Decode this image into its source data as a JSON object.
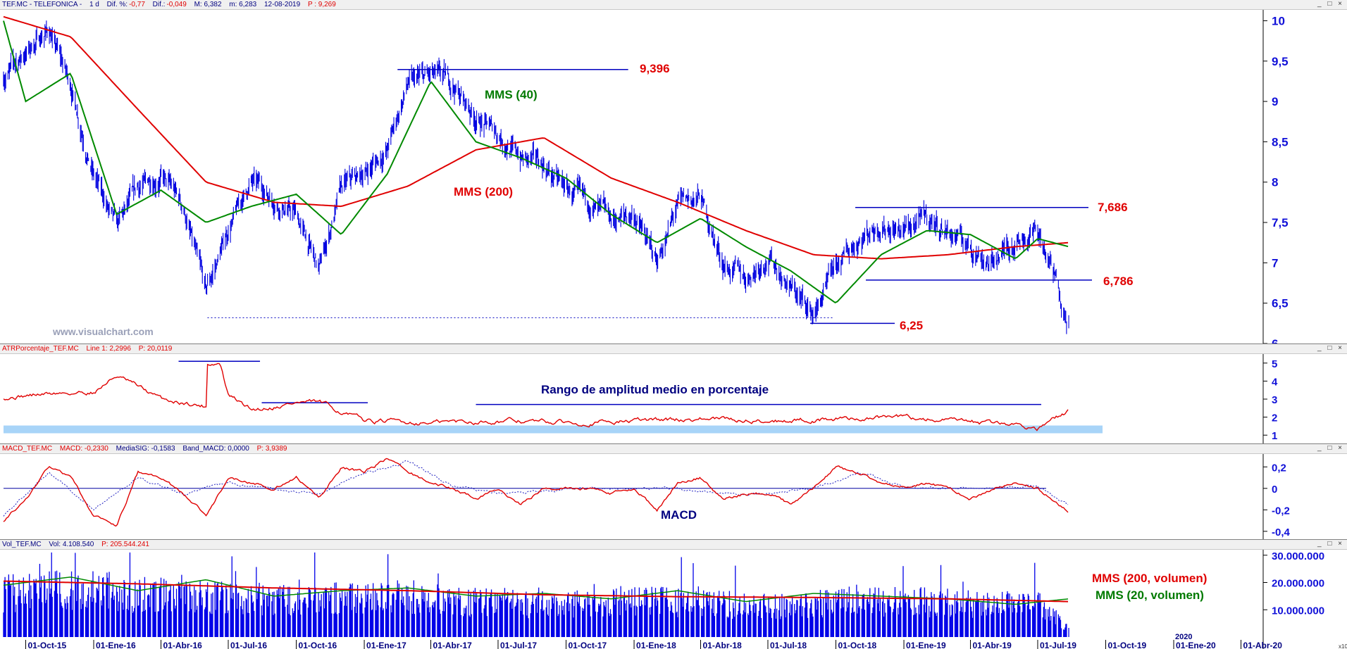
{
  "panels": {
    "price": {
      "header": {
        "symbol": "TEF.MC - TELEFONICA -",
        "period": "1 d",
        "dif_pct_label": "Dif. %:",
        "dif_pct": "-0,77",
        "dif_label": "Dif.:",
        "dif": "-0,049",
        "max": "M: 6,382",
        "min": "m: 6,283",
        "date": "12-08-2019",
        "last": "P : 9,269"
      },
      "watermark": "www.visualchart.com",
      "annotations": {
        "high_level": "9,396",
        "range_top": "7,686",
        "range_bottom": "6,786",
        "low_level": "6,25",
        "mms40": "MMS (40)",
        "mms200": "MMS (200)"
      }
    },
    "atr": {
      "header": {
        "name": "ATRPorcentaje_TEF.MC",
        "line": "Line 1: 2,2996",
        "p": "P: 20,0119"
      },
      "title": "Rango de amplitud medio en porcentaje"
    },
    "macd": {
      "header": {
        "name": "MACD_TEF.MC",
        "macd": "MACD: -0,2330",
        "signal": "MediaSIG: -0,1583",
        "band": "Band_MACD: 0,0000",
        "p": "P: 3,9389"
      },
      "title": "MACD"
    },
    "volume": {
      "header": {
        "name": "Vol_TEF.MC",
        "vol": "Vol: 4.108.540",
        "p": "P: 205.544.241"
      },
      "mms200_label": "MMS (200, volumen)",
      "mms20_label": "MMS (20, volumen)",
      "year_marker": "2020",
      "corner_label": "x10"
    }
  },
  "window_controls": "_ □ ×",
  "colors": {
    "price": "#0000e0",
    "mms200": "#e00000",
    "mms40": "#008a00",
    "axis_text": "#1010d8",
    "atr_band": "#a8d4f8"
  },
  "chart_data": [
    {
      "type": "line",
      "title": "TEF.MC - TELEFONICA",
      "x_ticks": [
        "01-Oct-15",
        "01-Ene-16",
        "01-Abr-16",
        "01-Jul-16",
        "01-Oct-16",
        "01-Ene-17",
        "01-Abr-17",
        "01-Jul-17",
        "01-Oct-17",
        "01-Ene-18",
        "01-Abr-18",
        "01-Jul-18",
        "01-Oct-18",
        "01-Ene-19",
        "01-Abr-19",
        "01-Jul-19",
        "01-Oct-19",
        "01-Ene-20",
        "01-Abr-20"
      ],
      "y_ticks": [
        "10",
        "9,5",
        "9",
        "8,5",
        "8",
        "7,5",
        "7",
        "6,5",
        "6"
      ],
      "ylim": [
        6,
        10.1
      ],
      "series": [
        {
          "name": "Price",
          "x": [
            "01-Sep-15",
            "01-Oct-15",
            "01-Nov-15",
            "01-Dic-15",
            "01-Ene-16",
            "01-Feb-16",
            "01-Mar-16",
            "01-Abr-16",
            "01-May-16",
            "01-Jun-16",
            "01-Jul-16",
            "01-Ago-16",
            "01-Sep-16",
            "01-Oct-16",
            "01-Nov-16",
            "01-Dic-16",
            "01-Ene-17",
            "01-Feb-17",
            "01-Mar-17",
            "01-Abr-17",
            "01-May-17",
            "01-Jun-17",
            "01-Jul-17",
            "01-Ago-17",
            "01-Sep-17",
            "01-Oct-17",
            "01-Nov-17",
            "01-Dic-17",
            "01-Ene-18",
            "01-Feb-18",
            "01-Mar-18",
            "01-Abr-18",
            "01-May-18",
            "01-Jun-18",
            "01-Jul-18",
            "01-Ago-18",
            "01-Sep-18",
            "01-Oct-18",
            "01-Nov-18",
            "01-Dic-18",
            "01-Ene-19",
            "01-Feb-19",
            "01-Mar-19",
            "01-Abr-19",
            "01-May-19",
            "01-Jun-19",
            "01-Jul-19",
            "12-Ago-19"
          ],
          "values": [
            9.3,
            9.6,
            9.9,
            9.2,
            8.1,
            7.4,
            7.9,
            8.1,
            7.7,
            6.6,
            7.4,
            8.0,
            7.8,
            7.6,
            6.9,
            7.9,
            8.1,
            8.4,
            9.2,
            9.3,
            9.2,
            8.8,
            8.6,
            8.3,
            8.2,
            7.9,
            7.7,
            7.5,
            7.6,
            7.0,
            7.7,
            7.8,
            7.0,
            6.8,
            7.1,
            6.7,
            6.35,
            6.9,
            7.3,
            7.5,
            7.4,
            7.55,
            7.4,
            7.2,
            7.0,
            7.3,
            7.4,
            6.3
          ]
        },
        {
          "name": "MMS (40)",
          "x": [
            "01-Sep-15",
            "01-Oct-15",
            "01-Dic-15",
            "01-Feb-16",
            "01-Abr-16",
            "01-Jun-16",
            "01-Ago-16",
            "01-Oct-16",
            "01-Dic-16",
            "01-Feb-17",
            "01-Abr-17",
            "01-Jun-17",
            "01-Ago-17",
            "01-Oct-17",
            "01-Dic-17",
            "01-Feb-18",
            "01-Abr-18",
            "01-Jun-18",
            "01-Ago-18",
            "01-Oct-18",
            "01-Dic-18",
            "01-Feb-19",
            "01-Abr-19",
            "01-Jun-19",
            "01-Jul-19",
            "12-Ago-19"
          ],
          "values": [
            10.0,
            9.0,
            9.35,
            7.6,
            7.9,
            7.5,
            7.7,
            7.85,
            7.35,
            8.1,
            9.25,
            8.5,
            8.3,
            8.05,
            7.6,
            7.25,
            7.55,
            7.2,
            6.9,
            6.5,
            7.1,
            7.4,
            7.35,
            7.05,
            7.3,
            7.2
          ]
        },
        {
          "name": "MMS (200)",
          "x": [
            "01-Sep-15",
            "01-Dic-15",
            "01-Mar-16",
            "01-Jun-16",
            "01-Sep-16",
            "01-Dic-16",
            "01-Mar-17",
            "01-Jun-17",
            "01-Sep-17",
            "01-Dic-17",
            "01-Mar-18",
            "01-Jun-18",
            "01-Sep-18",
            "01-Dic-18",
            "01-Mar-19",
            "01-Jun-19",
            "12-Ago-19"
          ],
          "values": [
            10.05,
            9.8,
            8.9,
            8.0,
            7.75,
            7.7,
            7.95,
            8.4,
            8.55,
            8.05,
            7.75,
            7.4,
            7.1,
            7.05,
            7.1,
            7.2,
            7.25
          ]
        }
      ],
      "horizontal_levels": [
        9.396,
        7.686,
        6.786,
        6.25
      ],
      "grid": false
    },
    {
      "type": "line",
      "title": "Rango de amplitud medio en porcentaje",
      "y_ticks": [
        "5",
        "4",
        "3",
        "2",
        "1"
      ],
      "ylim": [
        0.5,
        5.5
      ],
      "series": [
        {
          "name": "ATRPorcentaje",
          "x": [
            "01-Sep-15",
            "01-Nov-15",
            "01-Ene-16",
            "01-Feb-16",
            "01-Abr-16",
            "01-Jun-16",
            "02-Jun-16",
            "20-Jun-16",
            "01-Jul-16",
            "01-Ago-16",
            "01-Oct-16",
            "01-Nov-16",
            "01-Ene-17",
            "01-Abr-17",
            "01-Jul-17",
            "01-Oct-17",
            "01-Ene-18",
            "01-Abr-18",
            "01-Jul-18",
            "01-Oct-18",
            "01-Ene-19",
            "01-Abr-19",
            "01-Jun-19",
            "01-Jul-19",
            "12-Ago-19"
          ],
          "values": [
            3.1,
            3.3,
            3.4,
            4.3,
            3.0,
            2.6,
            5.0,
            5.0,
            3.2,
            2.4,
            2.8,
            2.8,
            1.8,
            1.7,
            1.8,
            1.7,
            1.8,
            1.9,
            1.8,
            1.9,
            2.0,
            1.7,
            1.6,
            1.4,
            2.3
          ]
        }
      ],
      "reference_levels": [
        5.1,
        2.8,
        2.7,
        1.3
      ]
    },
    {
      "type": "line",
      "title": "MACD",
      "y_ticks": [
        "0,2",
        "0",
        "-0,2",
        "-0,4"
      ],
      "ylim": [
        -0.48,
        0.32
      ],
      "series": [
        {
          "name": "MACD",
          "x": [
            "01-Sep-15",
            "01-Oct-15",
            "01-Nov-15",
            "01-Dic-15",
            "01-Ene-16",
            "01-Feb-16",
            "01-Mar-16",
            "01-Abr-16",
            "01-May-16",
            "01-Jun-16",
            "01-Jul-16",
            "01-Ago-16",
            "01-Sep-16",
            "01-Oct-16",
            "01-Nov-16",
            "01-Dic-16",
            "01-Ene-17",
            "01-Feb-17",
            "01-Mar-17",
            "01-Abr-17",
            "01-May-17",
            "01-Jun-17",
            "01-Jul-17",
            "01-Ago-17",
            "01-Sep-17",
            "01-Oct-17",
            "01-Nov-17",
            "01-Dic-17",
            "01-Ene-18",
            "01-Feb-18",
            "01-Mar-18",
            "01-Abr-18",
            "01-May-18",
            "01-Jun-18",
            "01-Jul-18",
            "01-Ago-18",
            "01-Sep-18",
            "01-Oct-18",
            "01-Nov-18",
            "01-Dic-18",
            "01-Ene-19",
            "01-Feb-19",
            "01-Mar-19",
            "01-Abr-19",
            "01-May-19",
            "01-Jun-19",
            "01-Jul-19",
            "12-Ago-19"
          ],
          "values": [
            -0.3,
            -0.1,
            0.2,
            0.1,
            -0.25,
            -0.35,
            0.15,
            0.1,
            -0.05,
            -0.25,
            0.1,
            0.05,
            0.0,
            0.1,
            -0.1,
            0.2,
            0.15,
            0.28,
            0.15,
            0.05,
            0.0,
            -0.1,
            0.0,
            -0.15,
            0.0,
            0.0,
            0.0,
            -0.05,
            0.0,
            -0.2,
            0.05,
            0.1,
            -0.1,
            -0.05,
            -0.05,
            -0.15,
            0.0,
            0.2,
            0.15,
            0.05,
            0.0,
            0.05,
            0.0,
            -0.1,
            0.0,
            0.05,
            0.0,
            -0.23
          ]
        },
        {
          "name": "MediaSIG",
          "x": [
            "01-Sep-15",
            "01-Nov-15",
            "01-Ene-16",
            "01-Mar-16",
            "01-May-16",
            "01-Jul-16",
            "01-Sep-16",
            "01-Nov-16",
            "01-Ene-17",
            "01-Mar-17",
            "01-May-17",
            "01-Jul-17",
            "01-Sep-17",
            "01-Nov-17",
            "01-Ene-18",
            "01-Mar-18",
            "01-May-18",
            "01-Jul-18",
            "01-Sep-18",
            "01-Nov-18",
            "01-Ene-19",
            "01-Mar-19",
            "01-May-19",
            "01-Jul-19",
            "12-Ago-19"
          ],
          "values": [
            -0.25,
            0.15,
            -0.2,
            0.1,
            -0.05,
            0.05,
            0.0,
            -0.05,
            0.15,
            0.25,
            0.02,
            -0.05,
            -0.02,
            0.0,
            0.0,
            0.0,
            -0.05,
            -0.05,
            0.0,
            0.15,
            0.02,
            0.0,
            0.0,
            0.02,
            -0.16
          ]
        }
      ],
      "zero_line": 0
    },
    {
      "type": "bar",
      "title": "Vol_TEF.MC",
      "y_ticks": [
        "30.000.000",
        "20.000.000",
        "10.000.000"
      ],
      "ylim": [
        0,
        32000000
      ],
      "series": [
        {
          "name": "Volume",
          "x": [
            "01-Sep-15",
            "01-Nov-15",
            "01-Ene-16",
            "01-Mar-16",
            "01-May-16",
            "01-Jul-16",
            "01-Sep-16",
            "01-Nov-16",
            "01-Ene-17",
            "01-Mar-17",
            "01-May-17",
            "01-Jul-17",
            "01-Sep-17",
            "01-Nov-17",
            "01-Ene-18",
            "01-Mar-18",
            "01-May-18",
            "01-Jul-18",
            "01-Sep-18",
            "01-Nov-18",
            "01-Ene-19",
            "01-Mar-19",
            "01-May-19",
            "01-Jul-19",
            "12-Ago-19"
          ],
          "values": [
            20000000,
            21000000,
            22000000,
            19000000,
            20000000,
            18000000,
            17000000,
            18000000,
            17000000,
            19000000,
            16000000,
            16000000,
            15000000,
            15000000,
            17000000,
            16000000,
            15000000,
            14000000,
            15000000,
            17000000,
            16000000,
            16000000,
            14000000,
            16000000,
            4108540
          ]
        },
        {
          "name": "MMS (200, volumen)",
          "x": [
            "01-Sep-15",
            "01-Mar-16",
            "01-Sep-16",
            "01-Mar-17",
            "01-Sep-17",
            "01-Mar-18",
            "01-Sep-18",
            "01-Mar-19",
            "12-Ago-19"
          ],
          "values": [
            20500000,
            19500000,
            18000000,
            17000000,
            15500000,
            14800000,
            14500000,
            14000000,
            13000000
          ]
        },
        {
          "name": "MMS (20, volumen)",
          "x": [
            "01-Sep-15",
            "01-Dic-15",
            "01-Mar-16",
            "01-Jun-16",
            "01-Sep-16",
            "01-Dic-16",
            "01-Mar-17",
            "01-Jun-17",
            "01-Sep-17",
            "01-Dic-17",
            "01-Mar-18",
            "01-Jun-18",
            "01-Sep-18",
            "01-Dic-18",
            "01-Mar-19",
            "01-Jun-19",
            "12-Ago-19"
          ],
          "values": [
            19000000,
            22000000,
            17000000,
            21000000,
            15000000,
            17000000,
            18000000,
            15000000,
            16000000,
            14000000,
            17000000,
            13000000,
            16000000,
            15000000,
            14000000,
            12000000,
            14000000
          ]
        }
      ]
    }
  ]
}
